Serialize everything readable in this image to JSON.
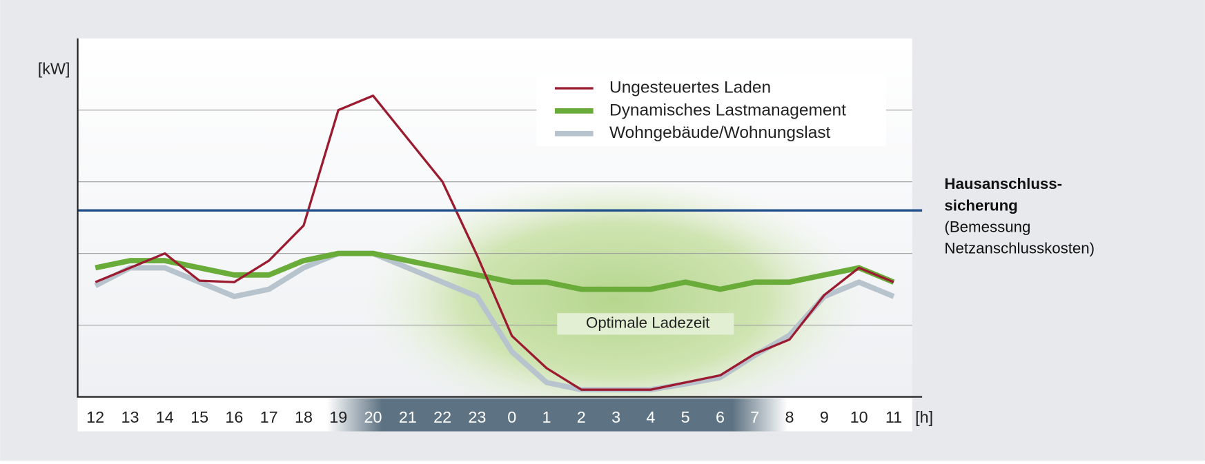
{
  "chart_data": {
    "type": "line",
    "y_label": "[kW]",
    "x_label": "[h]",
    "categories": [
      "12",
      "13",
      "14",
      "15",
      "16",
      "17",
      "18",
      "19",
      "20",
      "21",
      "22",
      "23",
      "0",
      "1",
      "2",
      "3",
      "4",
      "5",
      "6",
      "7",
      "8",
      "9",
      "10",
      "11"
    ],
    "series": [
      {
        "name": "Ungesteuertes Laden",
        "color": "#9b1b30",
        "width": 3,
        "values": [
          1.6,
          1.8,
          2.0,
          1.62,
          1.6,
          1.9,
          2.39,
          4.0,
          4.2,
          3.6,
          3.0,
          1.97,
          0.85,
          0.4,
          0.1,
          0.1,
          0.1,
          0.2,
          0.3,
          0.6,
          0.8,
          1.42,
          1.8,
          1.6
        ]
      },
      {
        "name": "Dynamisches Lastmanagement",
        "color": "#6aac3a",
        "width": 7,
        "values": [
          1.8,
          1.9,
          1.9,
          1.8,
          1.7,
          1.7,
          1.9,
          2.0,
          2.0,
          1.9,
          1.8,
          1.7,
          1.6,
          1.6,
          1.5,
          1.5,
          1.5,
          1.6,
          1.5,
          1.6,
          1.6,
          1.7,
          1.8,
          1.6
        ]
      },
      {
        "name": "Wohngebäude/Wohnungslast",
        "color": "#b8c4cd",
        "width": 7,
        "values": [
          1.55,
          1.8,
          1.8,
          1.6,
          1.4,
          1.5,
          1.8,
          2.0,
          2.0,
          1.8,
          1.6,
          1.4,
          0.63,
          0.2,
          0.1,
          0.1,
          0.1,
          0.18,
          0.27,
          0.58,
          0.86,
          1.4,
          1.6,
          1.4
        ]
      }
    ],
    "ylim": [
      0,
      5
    ],
    "yticks": [
      1,
      2,
      3,
      4
    ],
    "grid": true,
    "threshold": {
      "value": 2.6,
      "color": "#1f4e8c",
      "label_bold": [
        "Hausanschluss-",
        "sicherung"
      ],
      "label": [
        "(Bemessung",
        "Netzanschlusskosten)"
      ]
    },
    "annotation": "Optimale Ladezeit"
  }
}
